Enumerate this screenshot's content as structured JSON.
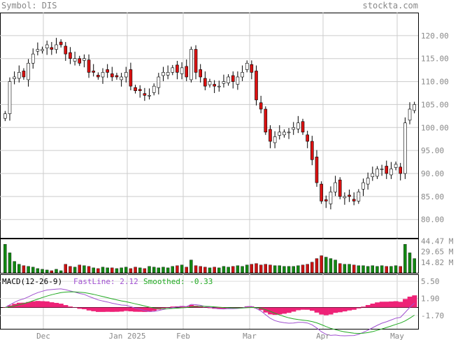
{
  "header": {
    "symbol_label": "Symbol: DIS",
    "site": "stockta.com"
  },
  "chart_data": [
    {
      "type": "candlestick",
      "title": "Symbol: DIS",
      "x_labels": [
        "Dec",
        "Jan 2025",
        "Feb",
        "Mar",
        "Apr",
        "May"
      ],
      "y_ticks": [
        "120.00",
        "115.00",
        "110.00",
        "105.00",
        "100.00",
        "95.00",
        "90.00",
        "85.00",
        "80.00"
      ],
      "ylim": [
        76,
        125
      ],
      "grid": true,
      "closes": [
        103,
        110,
        111,
        112,
        111,
        114,
        116,
        117,
        117,
        118,
        117,
        118,
        118,
        116,
        115,
        115,
        114,
        115,
        112,
        112,
        111,
        112,
        112,
        111,
        111,
        111,
        112,
        109,
        108,
        108,
        107,
        107,
        109,
        111,
        112,
        112,
        113,
        112,
        113,
        111,
        117,
        112,
        111,
        109,
        110,
        109,
        109,
        110,
        111,
        110,
        111,
        112,
        114,
        112,
        106,
        104,
        99,
        97,
        98,
        99,
        99,
        99,
        100,
        101,
        99,
        97,
        93,
        88,
        84,
        84,
        86,
        88,
        85,
        85,
        85,
        84,
        86,
        88,
        89,
        90,
        91,
        91,
        90,
        91,
        92,
        90,
        101,
        104,
        105
      ]
    },
    {
      "type": "bar",
      "name": "Volume",
      "y_ticks": [
        "44.47 M",
        "29.65 M",
        "14.82 M"
      ],
      "ylim": [
        0,
        48
      ],
      "values": [
        40,
        28,
        16,
        12,
        10,
        9,
        8,
        6,
        5,
        4,
        3,
        5,
        3,
        12,
        9,
        8,
        11,
        10,
        9,
        7,
        6,
        8,
        7,
        7,
        6,
        7,
        8,
        6,
        8,
        7,
        6,
        9,
        8,
        7,
        8,
        7,
        9,
        10,
        11,
        8,
        18,
        10,
        9,
        8,
        7,
        8,
        7,
        9,
        8,
        9,
        10,
        9,
        11,
        12,
        13,
        11,
        12,
        11,
        10,
        10,
        9,
        9,
        9,
        10,
        11,
        12,
        15,
        20,
        24,
        22,
        20,
        18,
        13,
        12,
        12,
        11,
        10,
        10,
        9,
        10,
        9,
        10,
        9,
        9,
        10,
        9,
        40,
        28,
        20
      ]
    },
    {
      "type": "line",
      "indicator": "MACD(12-26-9)",
      "series": [
        {
          "name": "FastLine",
          "label": "FastLine: 2.12",
          "color": "#a050d0"
        },
        {
          "name": "Smoothed",
          "label": "Smoothed: -0.33",
          "color": "#22aa22"
        },
        {
          "name": "Histogram",
          "color": "#ee2277"
        }
      ],
      "y_ticks": [
        "5.50",
        "1.90",
        "-1.70"
      ],
      "ylim": [
        -4.5,
        7
      ]
    }
  ]
}
